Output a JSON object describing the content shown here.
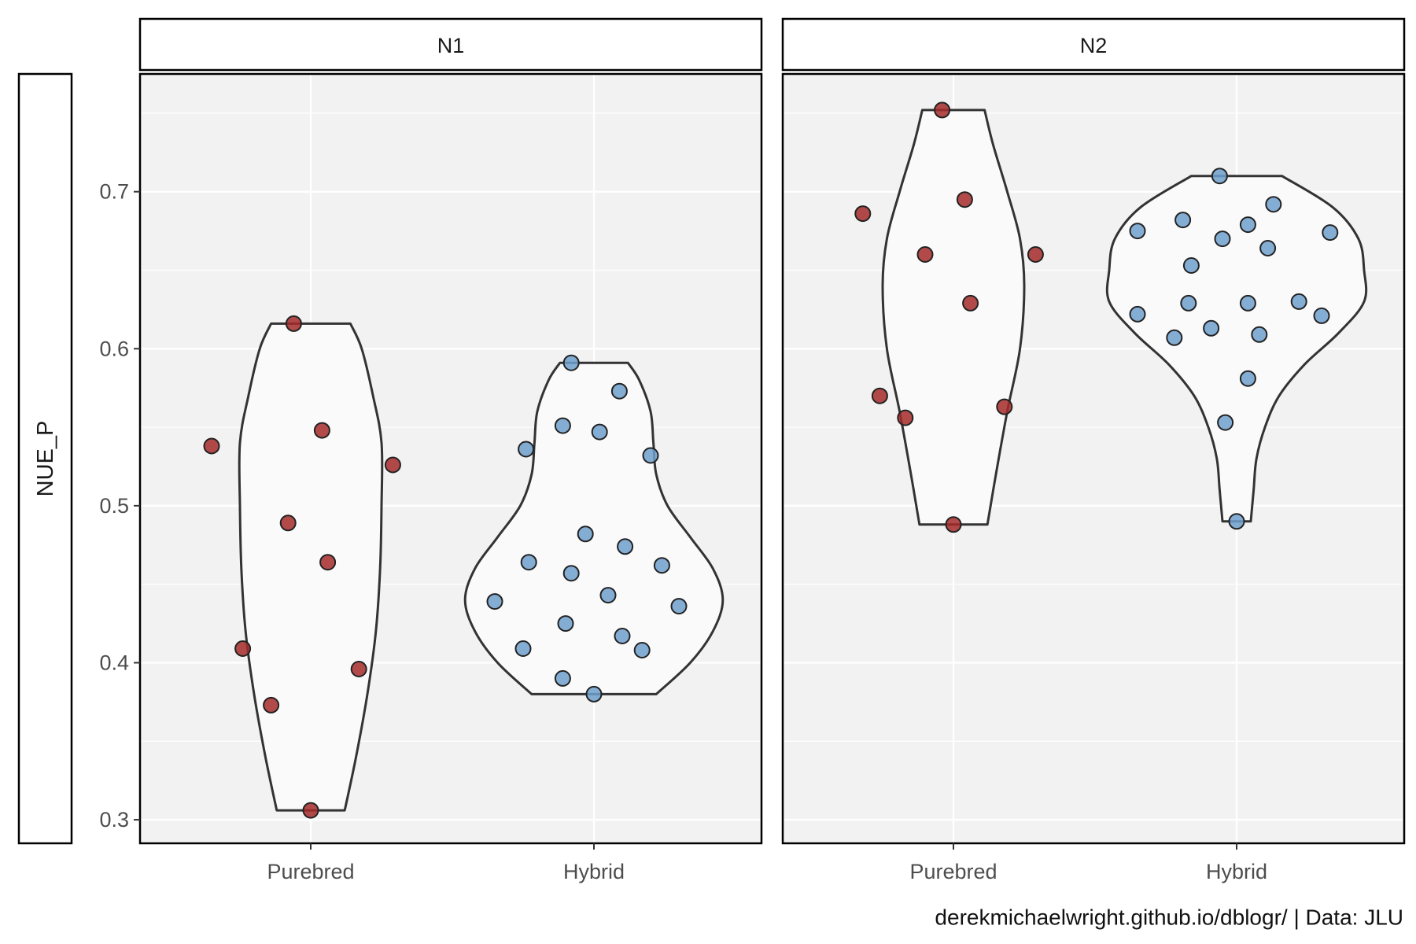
{
  "caption": "derekmichaelwright.github.io/dblogr/ | Data: JLU",
  "chart_data": {
    "type": "violin",
    "ylabel": "NUE_P",
    "ylim": [
      0.285,
      0.775
    ],
    "yticks": [
      0.3,
      0.4,
      0.5,
      0.6,
      0.7
    ],
    "ytick_labels": [
      "0.3",
      "0.4",
      "0.5",
      "0.6",
      "0.7"
    ],
    "categories": [
      "Purebred",
      "Hybrid"
    ],
    "grid": true,
    "colors": {
      "Purebred": "#a52a2a",
      "Hybrid": "#6f9fcc",
      "violin_fill": "#fafafa",
      "panel_bg": "#f2f2f2"
    },
    "panels": [
      {
        "label": "N1",
        "groups": [
          {
            "category": "Purebred",
            "points": [
              {
                "j": -0.35,
                "y": 0.538
              },
              {
                "j": -0.24,
                "y": 0.409
              },
              {
                "j": -0.14,
                "y": 0.373
              },
              {
                "j": -0.08,
                "y": 0.489
              },
              {
                "j": -0.06,
                "y": 0.616
              },
              {
                "j": 0.0,
                "y": 0.306
              },
              {
                "j": 0.04,
                "y": 0.548
              },
              {
                "j": 0.06,
                "y": 0.464
              },
              {
                "j": 0.17,
                "y": 0.396
              },
              {
                "j": 0.29,
                "y": 0.526
              }
            ],
            "violin": [
              [
                0.306,
                0.12
              ],
              [
                0.34,
                0.16
              ],
              [
                0.38,
                0.2
              ],
              [
                0.42,
                0.23
              ],
              [
                0.46,
                0.245
              ],
              [
                0.5,
                0.25
              ],
              [
                0.54,
                0.25
              ],
              [
                0.57,
                0.22
              ],
              [
                0.6,
                0.18
              ],
              [
                0.616,
                0.14
              ]
            ]
          },
          {
            "category": "Hybrid",
            "points": [
              {
                "j": -0.35,
                "y": 0.439
              },
              {
                "j": -0.25,
                "y": 0.409
              },
              {
                "j": -0.24,
                "y": 0.536
              },
              {
                "j": -0.23,
                "y": 0.464
              },
              {
                "j": -0.11,
                "y": 0.39
              },
              {
                "j": -0.11,
                "y": 0.551
              },
              {
                "j": -0.08,
                "y": 0.457
              },
              {
                "j": -0.1,
                "y": 0.425
              },
              {
                "j": -0.08,
                "y": 0.591
              },
              {
                "j": -0.03,
                "y": 0.482
              },
              {
                "j": 0.0,
                "y": 0.38
              },
              {
                "j": 0.02,
                "y": 0.547
              },
              {
                "j": 0.05,
                "y": 0.443
              },
              {
                "j": 0.1,
                "y": 0.417
              },
              {
                "j": 0.09,
                "y": 0.573
              },
              {
                "j": 0.11,
                "y": 0.474
              },
              {
                "j": 0.17,
                "y": 0.408
              },
              {
                "j": 0.2,
                "y": 0.532
              },
              {
                "j": 0.24,
                "y": 0.462
              },
              {
                "j": 0.3,
                "y": 0.436
              }
            ],
            "violin": [
              [
                0.38,
                0.22
              ],
              [
                0.4,
                0.34
              ],
              [
                0.42,
                0.42
              ],
              [
                0.44,
                0.455
              ],
              [
                0.46,
                0.42
              ],
              [
                0.48,
                0.34
              ],
              [
                0.5,
                0.26
              ],
              [
                0.52,
                0.22
              ],
              [
                0.54,
                0.21
              ],
              [
                0.56,
                0.2
              ],
              [
                0.58,
                0.16
              ],
              [
                0.591,
                0.12
              ]
            ]
          }
        ]
      },
      {
        "label": "N2",
        "groups": [
          {
            "category": "Purebred",
            "points": [
              {
                "j": -0.32,
                "y": 0.686
              },
              {
                "j": -0.26,
                "y": 0.57
              },
              {
                "j": -0.17,
                "y": 0.556
              },
              {
                "j": -0.1,
                "y": 0.66
              },
              {
                "j": -0.04,
                "y": 0.752
              },
              {
                "j": 0.0,
                "y": 0.488
              },
              {
                "j": 0.04,
                "y": 0.695
              },
              {
                "j": 0.06,
                "y": 0.629
              },
              {
                "j": 0.18,
                "y": 0.563
              },
              {
                "j": 0.29,
                "y": 0.66
              }
            ],
            "violin": [
              [
                0.488,
                0.12
              ],
              [
                0.52,
                0.15
              ],
              [
                0.56,
                0.19
              ],
              [
                0.6,
                0.235
              ],
              [
                0.64,
                0.25
              ],
              [
                0.67,
                0.235
              ],
              [
                0.7,
                0.19
              ],
              [
                0.73,
                0.14
              ],
              [
                0.752,
                0.11
              ]
            ]
          },
          {
            "category": "Hybrid",
            "points": [
              {
                "j": -0.35,
                "y": 0.675
              },
              {
                "j": -0.35,
                "y": 0.622
              },
              {
                "j": -0.22,
                "y": 0.607
              },
              {
                "j": -0.19,
                "y": 0.682
              },
              {
                "j": -0.17,
                "y": 0.629
              },
              {
                "j": -0.16,
                "y": 0.653
              },
              {
                "j": -0.09,
                "y": 0.613
              },
              {
                "j": -0.06,
                "y": 0.71
              },
              {
                "j": -0.05,
                "y": 0.67
              },
              {
                "j": -0.04,
                "y": 0.553
              },
              {
                "j": 0.0,
                "y": 0.49
              },
              {
                "j": 0.04,
                "y": 0.679
              },
              {
                "j": 0.04,
                "y": 0.629
              },
              {
                "j": 0.04,
                "y": 0.581
              },
              {
                "j": 0.08,
                "y": 0.609
              },
              {
                "j": 0.11,
                "y": 0.664
              },
              {
                "j": 0.13,
                "y": 0.692
              },
              {
                "j": 0.22,
                "y": 0.63
              },
              {
                "j": 0.3,
                "y": 0.621
              },
              {
                "j": 0.33,
                "y": 0.674
              }
            ],
            "violin": [
              [
                0.49,
                0.05
              ],
              [
                0.51,
                0.06
              ],
              [
                0.53,
                0.07
              ],
              [
                0.55,
                0.1
              ],
              [
                0.57,
                0.15
              ],
              [
                0.59,
                0.24
              ],
              [
                0.61,
                0.36
              ],
              [
                0.63,
                0.45
              ],
              [
                0.65,
                0.45
              ],
              [
                0.67,
                0.43
              ],
              [
                0.69,
                0.34
              ],
              [
                0.71,
                0.16
              ]
            ]
          }
        ]
      }
    ]
  }
}
